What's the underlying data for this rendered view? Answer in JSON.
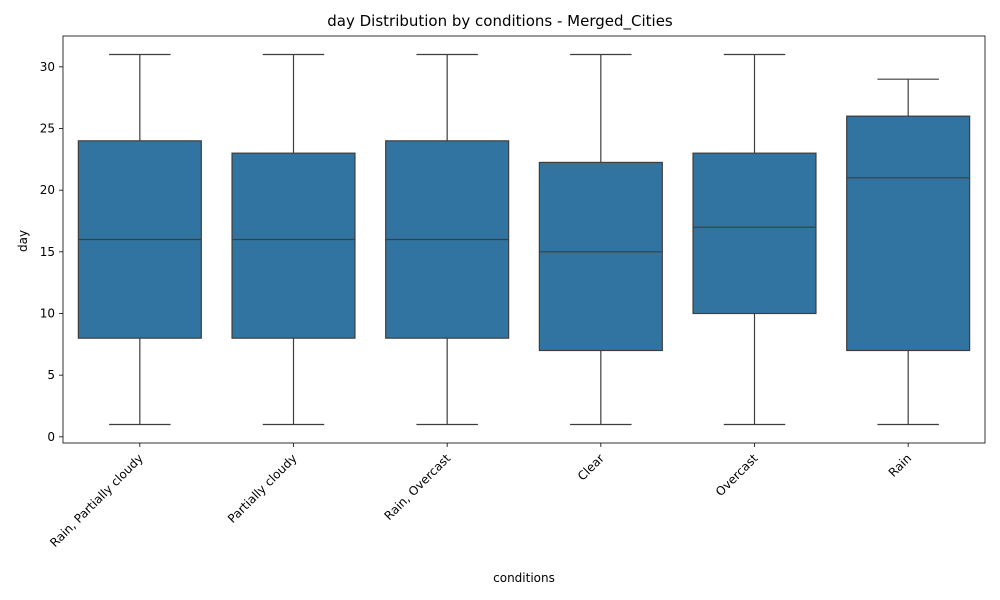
{
  "chart_data": {
    "type": "box",
    "title": "day Distribution by conditions - Merged_Cities",
    "xlabel": "conditions",
    "ylabel": "day",
    "ylim": [
      -0.5,
      32.5
    ],
    "yticks": [
      0,
      5,
      10,
      15,
      20,
      25,
      30
    ],
    "categories": [
      "Rain, Partially cloudy",
      "Partially cloudy",
      "Rain, Overcast",
      "Clear",
      "Overcast",
      "Rain"
    ],
    "boxes": [
      {
        "min": 1,
        "q1": 8,
        "median": 16,
        "q3": 24,
        "max": 31
      },
      {
        "min": 1,
        "q1": 8,
        "median": 16,
        "q3": 23,
        "max": 31
      },
      {
        "min": 1,
        "q1": 8,
        "median": 16,
        "q3": 24,
        "max": 31
      },
      {
        "min": 1,
        "q1": 7,
        "median": 15,
        "q3": 22.25,
        "max": 31
      },
      {
        "min": 1,
        "q1": 10,
        "median": 17,
        "q3": 23,
        "max": 31
      },
      {
        "min": 1,
        "q1": 7,
        "median": 21,
        "q3": 26,
        "max": 29
      }
    ],
    "box_color": "#3274a1",
    "line_color": "#3d3d3d",
    "grid": false
  }
}
